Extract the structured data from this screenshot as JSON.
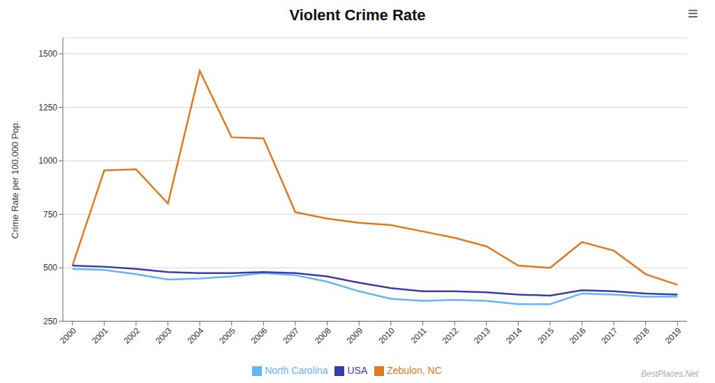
{
  "chart_data": {
    "type": "line",
    "title": "Violent Crime Rate",
    "y_label": "Crime Rate per 100,000 Pop.",
    "x": [
      2000,
      2001,
      2002,
      2003,
      2004,
      2005,
      2006,
      2007,
      2008,
      2009,
      2010,
      2011,
      2012,
      2013,
      2014,
      2015,
      2016,
      2017,
      2018,
      2019
    ],
    "series": [
      {
        "name": "Zebulon, NC",
        "color": "#E07820",
        "values": [
          510,
          955,
          960,
          800,
          1420,
          1110,
          1105,
          760,
          730,
          710,
          700,
          670,
          640,
          600,
          510,
          500,
          620,
          580,
          470,
          420
        ]
      },
      {
        "name": "North Carolina",
        "color": "#64B5F6",
        "values": [
          495,
          490,
          470,
          445,
          450,
          460,
          475,
          465,
          435,
          390,
          355,
          345,
          350,
          345,
          330,
          330,
          380,
          375,
          365,
          365
        ]
      },
      {
        "name": "USA",
        "color": "#3A3AB0",
        "values": [
          510,
          505,
          495,
          480,
          475,
          475,
          480,
          475,
          460,
          430,
          405,
          390,
          390,
          385,
          375,
          370,
          395,
          390,
          380,
          375
        ]
      }
    ],
    "xlim": [
      1999.7,
      2019.3
    ],
    "xticks": [
      2000,
      2001,
      2002,
      2003,
      2004,
      2005,
      2006,
      2007,
      2008,
      2009,
      2010,
      2011,
      2012,
      2013,
      2014,
      2015,
      2016,
      2017,
      2018,
      2019
    ],
    "ylim": [
      250,
      1575
    ],
    "yticks": [
      250,
      500,
      750,
      1000,
      1250,
      1500
    ],
    "grid": true,
    "legend": "bottom",
    "annotations": [
      "≡",
      "BestPlaces.Net"
    ]
  }
}
